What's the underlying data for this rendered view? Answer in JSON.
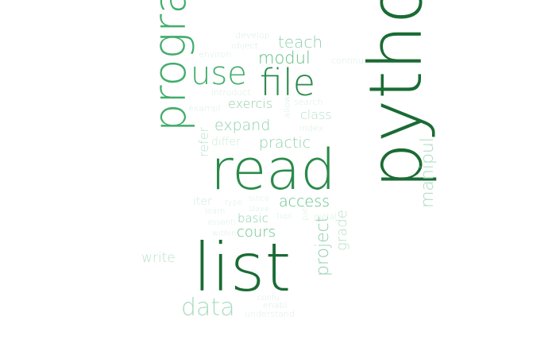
{
  "words": [
    {
      "text": "python",
      "weight": 1.0,
      "rotate": -90,
      "color": "#1a6b34"
    },
    {
      "text": "list",
      "weight": 0.93,
      "rotate": 0,
      "color": "#1a6b34"
    },
    {
      "text": "read",
      "weight": 0.9,
      "rotate": 0,
      "color": "#2a8a4a"
    },
    {
      "text": "program",
      "weight": 0.78,
      "rotate": -90,
      "color": "#41ad6a"
    },
    {
      "text": "file",
      "weight": 0.62,
      "rotate": 0,
      "color": "#2a8a4a"
    },
    {
      "text": "use",
      "weight": 0.55,
      "rotate": 0,
      "color": "#41ad6a"
    },
    {
      "text": "data",
      "weight": 0.42,
      "rotate": 0,
      "color": "#a8dcc0"
    },
    {
      "text": "project",
      "weight": 0.35,
      "rotate": -90,
      "color": "#8fd0ab"
    },
    {
      "text": "manipul",
      "weight": 0.34,
      "rotate": -90,
      "color": "#a8dcc0"
    },
    {
      "text": "modul",
      "weight": 0.3,
      "rotate": 0,
      "color": "#5fbf85"
    },
    {
      "text": "teach",
      "weight": 0.28,
      "rotate": 0,
      "color": "#8fd0ab"
    },
    {
      "text": "expand",
      "weight": 0.27,
      "rotate": 0,
      "color": "#8fd0ab"
    },
    {
      "text": "practic",
      "weight": 0.27,
      "rotate": 0,
      "color": "#8fd0ab"
    },
    {
      "text": "access",
      "weight": 0.27,
      "rotate": 0,
      "color": "#5fbf85"
    },
    {
      "text": "cours",
      "weight": 0.26,
      "rotate": 0,
      "color": "#5fbf85"
    },
    {
      "text": "exercis",
      "weight": 0.24,
      "rotate": 0,
      "color": "#8fd0ab"
    },
    {
      "text": "class",
      "weight": 0.24,
      "rotate": 0,
      "color": "#b8e2cb"
    },
    {
      "text": "grade",
      "weight": 0.24,
      "rotate": -90,
      "color": "#b8e2cb"
    },
    {
      "text": "write",
      "weight": 0.24,
      "rotate": 0,
      "color": "#b8e2cb"
    },
    {
      "text": "basic",
      "weight": 0.22,
      "rotate": 0,
      "color": "#8fd0ab"
    },
    {
      "text": "refer",
      "weight": 0.21,
      "rotate": -90,
      "color": "#b8e2cb"
    },
    {
      "text": "differ",
      "weight": 0.19,
      "rotate": 0,
      "color": "#cdebd9"
    },
    {
      "text": "iter",
      "weight": 0.19,
      "rotate": 0,
      "color": "#cdebd9"
    },
    {
      "text": "develop",
      "weight": 0.15,
      "rotate": 0,
      "color": "#d9efe2"
    },
    {
      "text": "object",
      "weight": 0.15,
      "rotate": 0,
      "color": "#d9efe2"
    },
    {
      "text": "environ",
      "weight": 0.15,
      "rotate": 0,
      "color": "#d9efe2"
    },
    {
      "text": "continu",
      "weight": 0.15,
      "rotate": 0,
      "color": "#d9efe2"
    },
    {
      "text": "introduct",
      "weight": 0.15,
      "rotate": 0,
      "color": "#d9efe2"
    },
    {
      "text": "exampl",
      "weight": 0.15,
      "rotate": 0,
      "color": "#d9efe2"
    },
    {
      "text": "search",
      "weight": 0.15,
      "rotate": 0,
      "color": "#d9efe2"
    },
    {
      "text": "allow",
      "weight": 0.14,
      "rotate": -90,
      "color": "#d9efe2"
    },
    {
      "text": "index",
      "weight": 0.15,
      "rotate": 0,
      "color": "#d9efe2"
    },
    {
      "text": "type",
      "weight": 0.14,
      "rotate": 0,
      "color": "#d9efe2"
    },
    {
      "text": "since",
      "weight": 0.14,
      "rotate": 0,
      "color": "#d9efe2"
    },
    {
      "text": "learn",
      "weight": 0.14,
      "rotate": 0,
      "color": "#d9efe2"
    },
    {
      "text": "slave",
      "weight": 0.14,
      "rotate": 0,
      "color": "#d9efe2"
    },
    {
      "text": "tupl",
      "weight": 0.14,
      "rotate": 0,
      "color": "#d9efe2"
    },
    {
      "text": "path",
      "weight": 0.13,
      "rotate": -90,
      "color": "#d9efe2"
    },
    {
      "text": "metal",
      "weight": 0.14,
      "rotate": 0,
      "color": "#d9efe2"
    },
    {
      "text": "essenti",
      "weight": 0.14,
      "rotate": 0,
      "color": "#d9efe2"
    },
    {
      "text": "within",
      "weight": 0.14,
      "rotate": 0,
      "color": "#d9efe2"
    },
    {
      "text": "confu",
      "weight": 0.14,
      "rotate": 0,
      "color": "#d9efe2"
    },
    {
      "text": "enabl",
      "weight": 0.15,
      "rotate": 0,
      "color": "#d9efe2"
    },
    {
      "text": "understand",
      "weight": 0.15,
      "rotate": 0,
      "color": "#d9efe2"
    }
  ]
}
